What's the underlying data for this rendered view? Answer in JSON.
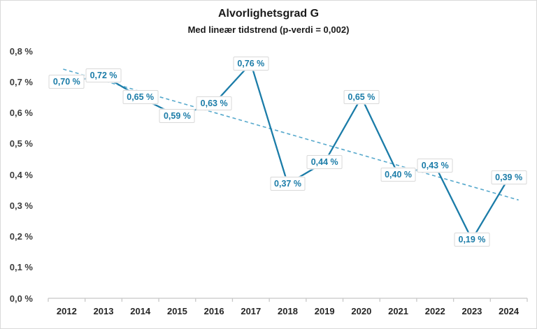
{
  "chart_data": {
    "type": "line",
    "title": "Alvorlighetsgrad G",
    "subtitle": "Med lineær tidstrend (p-verdi = 0,002)",
    "categories": [
      "2012",
      "2013",
      "2014",
      "2015",
      "2016",
      "2017",
      "2018",
      "2019",
      "2020",
      "2021",
      "2022",
      "2023",
      "2024"
    ],
    "series": [
      {
        "name": "Alvorlighetsgrad G",
        "values": [
          0.7,
          0.72,
          0.65,
          0.59,
          0.63,
          0.76,
          0.37,
          0.44,
          0.65,
          0.4,
          0.43,
          0.19,
          0.39
        ],
        "labels": [
          "0,70 %",
          "0,72 %",
          "0,65 %",
          "0,59 %",
          "0,63 %",
          "0,76 %",
          "0,37 %",
          "0,44 %",
          "0,65 %",
          "0,40 %",
          "0,43 %",
          "0,19 %",
          "0,39 %"
        ]
      }
    ],
    "trendline": {
      "type": "linear",
      "style": "dashed",
      "start_value": 0.738,
      "end_value": 0.327,
      "p_value_text": "p-verdi = 0,002"
    },
    "y_axis": {
      "ticks": [
        "0,0 %",
        "0,1 %",
        "0,2 %",
        "0,3 %",
        "0,4 %",
        "0,5 %",
        "0,6 %",
        "0,7 %",
        "0,8 %"
      ],
      "tick_values": [
        0,
        0.1,
        0.2,
        0.3,
        0.4,
        0.5,
        0.6,
        0.7,
        0.8
      ],
      "range": [
        0,
        0.8
      ],
      "unit": "%"
    },
    "x_axis": {
      "ticks": [
        "2012",
        "2013",
        "2014",
        "2015",
        "2016",
        "2017",
        "2018",
        "2019",
        "2020",
        "2021",
        "2022",
        "2023",
        "2024"
      ]
    },
    "grid": false,
    "legend": "none",
    "colors": {
      "series": "#1b7ca8",
      "trend": "#55a8cc",
      "label_text": "#1b7ca8",
      "label_border": "#d9d9d9",
      "axis": "#c8c8c8",
      "tick_text": "#3d3d3d",
      "title_text": "#1a1a1a"
    }
  }
}
